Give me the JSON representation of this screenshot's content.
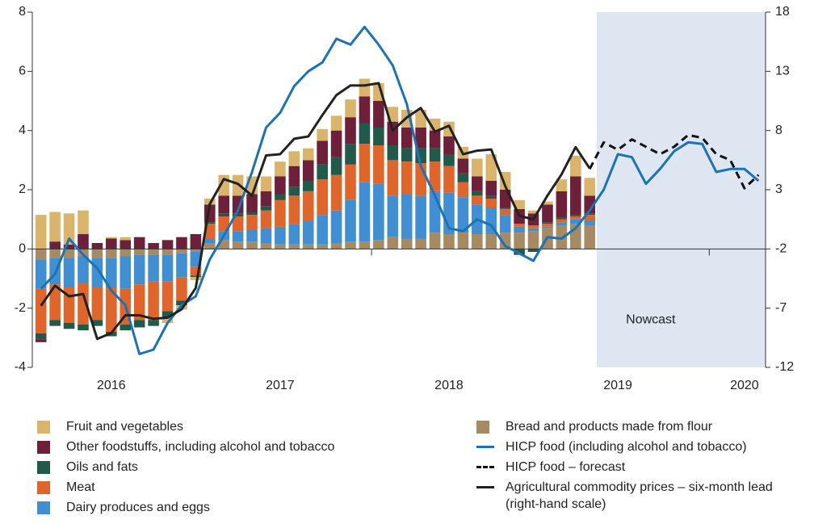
{
  "chart_data": {
    "type": "bar",
    "categories": [
      null,
      null,
      null,
      null,
      null,
      "2016",
      null,
      null,
      null,
      null,
      null,
      null,
      null,
      null,
      null,
      null,
      null,
      "2017",
      null,
      null,
      null,
      null,
      null,
      null,
      null,
      null,
      null,
      null,
      null,
      "2018",
      null,
      null,
      null,
      null,
      null,
      null,
      null,
      null,
      null,
      null,
      null,
      "2019",
      null,
      null,
      null,
      null,
      null,
      null,
      null,
      null,
      "2020",
      null
    ],
    "ylim": [
      -4,
      8
    ],
    "yticks": [
      -4,
      -2,
      0,
      2,
      4,
      6,
      8
    ],
    "y2lim": [
      -12,
      18
    ],
    "y2ticks": [
      -12,
      -7,
      -2,
      3,
      8,
      13,
      18
    ],
    "annotation": "Nowcast",
    "series": [
      {
        "name": "Bread and products made from flour",
        "type": "bar",
        "color": "#a88a62",
        "values": [
          -0.35,
          -0.3,
          -0.3,
          -0.25,
          -0.3,
          -0.3,
          -0.25,
          -0.2,
          -0.2,
          -0.2,
          -0.15,
          -0.1,
          0.2,
          0.3,
          0.25,
          0.25,
          0.2,
          0.15,
          0.15,
          0.15,
          0.15,
          0.2,
          0.25,
          0.25,
          0.3,
          0.4,
          0.35,
          0.35,
          0.55,
          0.5,
          0.55,
          0.5,
          0.5,
          0.55,
          0.55,
          0.6,
          0.7,
          0.8,
          0.85,
          0.8,
          null,
          null,
          null,
          null,
          null,
          null,
          null,
          null,
          null,
          null,
          null,
          null
        ]
      },
      {
        "name": "Dairy produces and eggs",
        "type": "bar",
        "color": "#3f8fd2",
        "values": [
          -1.0,
          -0.9,
          -1.0,
          -0.9,
          -1.0,
          -1.0,
          -1.1,
          -1.0,
          -0.9,
          -0.9,
          -0.8,
          -0.5,
          0.15,
          0.3,
          0.35,
          0.4,
          0.5,
          0.6,
          0.7,
          0.8,
          1.0,
          1.1,
          1.4,
          2.0,
          1.9,
          1.4,
          1.5,
          1.45,
          1.4,
          1.4,
          1.2,
          1.0,
          0.9,
          0.6,
          0.2,
          0.1,
          0.05,
          0.1,
          0.15,
          0.15,
          null,
          null,
          null,
          null,
          null,
          null,
          null,
          null,
          null,
          null,
          null,
          null
        ]
      },
      {
        "name": "Meat",
        "type": "bar",
        "color": "#e0652a",
        "values": [
          -1.5,
          -1.2,
          -1.2,
          -1.4,
          -1.1,
          -1.5,
          -1.2,
          -1.2,
          -1.3,
          -1.0,
          -0.8,
          -0.3,
          0.5,
          0.5,
          0.5,
          0.5,
          0.6,
          0.9,
          0.95,
          1.0,
          1.2,
          1.2,
          1.2,
          1.3,
          1.3,
          1.2,
          1.1,
          1.1,
          1.0,
          0.9,
          0.5,
          0.3,
          0.3,
          0.2,
          0.1,
          0.1,
          0.1,
          0.1,
          0.1,
          0.2,
          null,
          null,
          null,
          null,
          null,
          null,
          null,
          null,
          null,
          null,
          null,
          null
        ]
      },
      {
        "name": "Oils and fats",
        "type": "bar",
        "color": "#1f5a4a",
        "values": [
          -0.2,
          -0.2,
          -0.2,
          -0.2,
          -0.2,
          -0.15,
          -0.2,
          -0.25,
          -0.2,
          -0.2,
          -0.15,
          -0.05,
          0.05,
          0.1,
          0.1,
          0.1,
          0.15,
          0.2,
          0.3,
          0.35,
          0.5,
          0.6,
          0.7,
          0.7,
          0.6,
          0.5,
          0.45,
          0.5,
          0.45,
          0.4,
          0.3,
          0.15,
          0.1,
          0.05,
          -0.2,
          -0.1,
          0.05,
          0.05,
          0.05,
          0.05,
          null,
          null,
          null,
          null,
          null,
          null,
          null,
          null,
          null,
          null,
          null,
          null
        ]
      },
      {
        "name": "Other foodstuffs, including alcohol and tobacco",
        "type": "bar",
        "color": "#6e1f3a",
        "values": [
          -0.1,
          0.25,
          0.15,
          0.5,
          0.2,
          0.35,
          0.3,
          0.4,
          0.2,
          0.3,
          0.4,
          0.5,
          0.6,
          0.6,
          0.6,
          0.6,
          0.5,
          0.6,
          0.7,
          0.7,
          0.8,
          0.9,
          0.9,
          0.9,
          0.9,
          0.8,
          0.7,
          0.7,
          0.6,
          0.6,
          0.5,
          0.5,
          0.5,
          0.6,
          0.5,
          0.4,
          0.6,
          0.9,
          1.3,
          0.6,
          null,
          null,
          null,
          null,
          null,
          null,
          null,
          null,
          null,
          null,
          null,
          null
        ]
      },
      {
        "name": "Fruit and vegetables",
        "type": "bar",
        "color": "#d9b46a",
        "values": [
          1.15,
          1.0,
          1.05,
          0.8,
          0.0,
          0.05,
          0.1,
          0.0,
          0.0,
          -0.2,
          -0.15,
          -0.1,
          0.2,
          0.7,
          0.7,
          0.6,
          0.5,
          0.5,
          0.5,
          0.4,
          0.4,
          0.5,
          0.6,
          0.6,
          0.6,
          0.5,
          0.6,
          0.6,
          0.4,
          0.5,
          0.4,
          0.6,
          0.9,
          0.6,
          0.3,
          0.1,
          0.1,
          0.4,
          0.7,
          0.6,
          null,
          null,
          null,
          null,
          null,
          null,
          null,
          null,
          null,
          null,
          null,
          null
        ]
      },
      {
        "name": "HICP food (including alcohol and tobacco)",
        "type": "line",
        "color": "#1a73b8",
        "values": [
          -1.35,
          -0.85,
          0.35,
          -0.2,
          -0.65,
          -1.4,
          -1.9,
          -3.55,
          -3.4,
          -2.5,
          -1.9,
          -1.6,
          -0.35,
          0.45,
          1.3,
          2.6,
          4.1,
          4.6,
          5.5,
          6.0,
          6.3,
          7.1,
          6.9,
          7.5,
          6.9,
          6.2,
          4.9,
          2.8,
          1.8,
          0.7,
          0.6,
          1.0,
          0.8,
          0.1,
          -0.15,
          -0.4,
          0.4,
          0.35,
          0.7,
          1.3,
          2.0,
          3.2,
          3.1,
          2.2,
          2.7,
          3.3,
          3.6,
          3.55,
          2.6,
          2.7,
          2.7,
          2.3
        ]
      },
      {
        "name": "HICP food – forecast",
        "type": "line",
        "color": "#111111",
        "dashed": true,
        "values": [
          null,
          null,
          null,
          null,
          null,
          null,
          null,
          null,
          null,
          null,
          null,
          null,
          null,
          null,
          null,
          null,
          null,
          null,
          null,
          null,
          null,
          null,
          null,
          null,
          null,
          null,
          null,
          null,
          null,
          null,
          null,
          null,
          null,
          null,
          null,
          null,
          null,
          null,
          null,
          2.7,
          3.6,
          3.35,
          3.7,
          3.45,
          3.2,
          3.45,
          3.85,
          3.75,
          3.2,
          3.0,
          2.05,
          2.5
        ]
      },
      {
        "name": "Agricultural commodity prices – six-month lead (right-hand scale)",
        "type": "line",
        "axis": "y2",
        "color": "#222222",
        "values": [
          -6.8,
          -5.1,
          -6.0,
          -5.8,
          -9.6,
          -9.1,
          -7.6,
          -7.6,
          -7.9,
          -7.8,
          -7.1,
          -5.3,
          1.8,
          3.9,
          3.5,
          2.5,
          5.9,
          6.0,
          7.3,
          7.5,
          9.3,
          11.0,
          11.8,
          11.8,
          12.0,
          8.0,
          9.1,
          9.9,
          7.9,
          8.4,
          6.0,
          6.3,
          6.4,
          3.3,
          0.8,
          0.5,
          2.5,
          4.3,
          6.6,
          4.8,
          null,
          null,
          null,
          null,
          null,
          null,
          null,
          null,
          null,
          null,
          null,
          null
        ]
      }
    ],
    "legend_order": null
  }
}
